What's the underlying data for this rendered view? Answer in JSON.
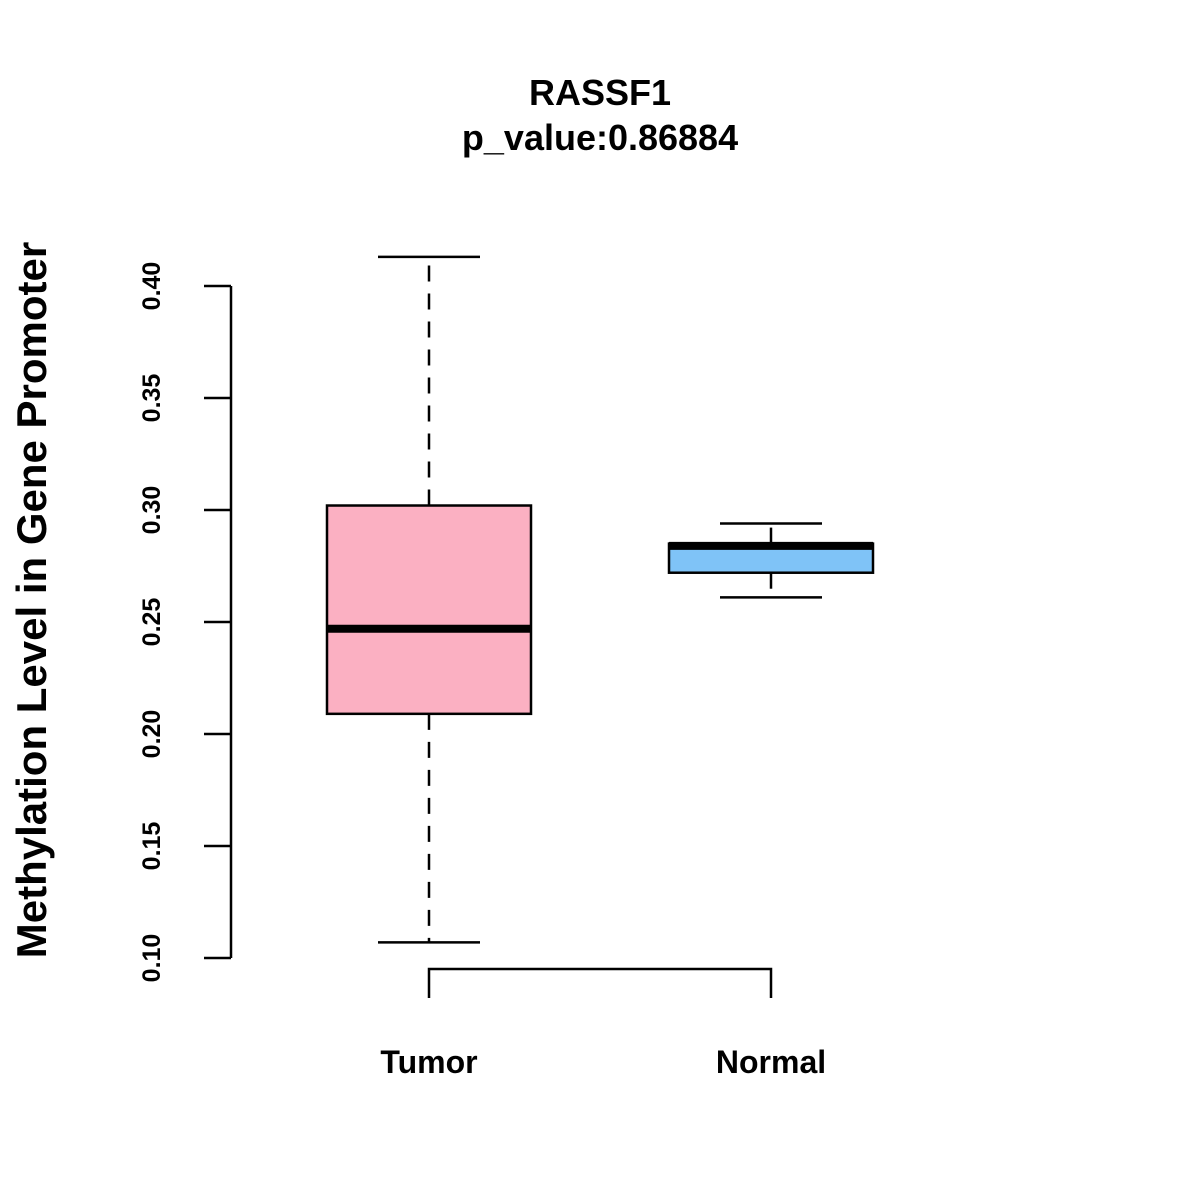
{
  "chart_data": {
    "type": "boxplot",
    "title": "RASSF1",
    "subtitle": "p_value:0.86884",
    "xlabel": "",
    "ylabel": "Methylation Level in Gene Promoter",
    "ylim": [
      0.1,
      0.4
    ],
    "yticks": [
      0.1,
      0.15,
      0.2,
      0.25,
      0.3,
      0.35,
      0.4
    ],
    "ytick_labels": [
      "0.10",
      "0.15",
      "0.20",
      "0.25",
      "0.30",
      "0.35",
      "0.40"
    ],
    "categories": [
      "Tumor",
      "Normal"
    ],
    "boxes": [
      {
        "name": "Tumor",
        "min": 0.107,
        "q1": 0.209,
        "median": 0.247,
        "q3": 0.302,
        "max": 0.413,
        "color": "#FBB0C2"
      },
      {
        "name": "Normal",
        "min": 0.261,
        "q1": 0.272,
        "median": 0.284,
        "q3": 0.285,
        "max": 0.294,
        "color": "#7FC3F7"
      }
    ],
    "significance_bracket": {
      "from": "Tumor",
      "to": "Normal",
      "label": ""
    },
    "grid": false,
    "legend": "none"
  }
}
